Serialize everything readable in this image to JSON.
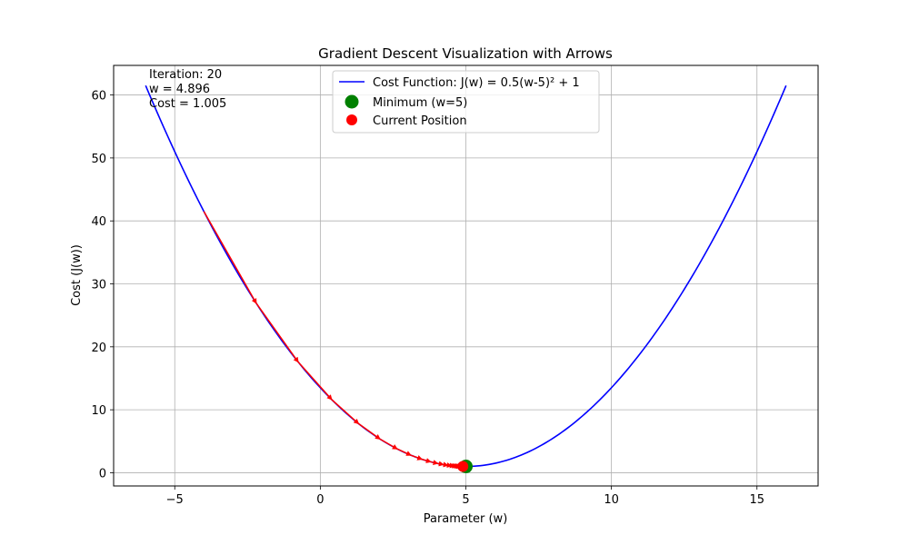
{
  "chart_data": {
    "type": "line",
    "title": "Gradient Descent Visualization with Arrows",
    "xlabel": "Parameter (w)",
    "ylabel": "Cost (J(w))",
    "xlim": [
      -7.1,
      17.1
    ],
    "ylim": [
      -2.1,
      64.7
    ],
    "xticks": [
      -5,
      0,
      5,
      10,
      15
    ],
    "yticks": [
      0,
      10,
      20,
      30,
      40,
      50,
      60
    ],
    "grid": true,
    "legend_position": "top-center",
    "curve": {
      "name": "Cost Function: J(w) = 0.5(w-5)² + 1",
      "color": "#0000ff",
      "function": "0.5*(w-5)^2 + 1",
      "x_range": [
        -6,
        16
      ]
    },
    "minimum": {
      "name": "Minimum (w=5)",
      "x": 5,
      "y": 1,
      "color": "#008000"
    },
    "current": {
      "name": "Current Position",
      "x": 4.896,
      "y": 1.005,
      "color": "#ff0000"
    },
    "path": {
      "color": "#ff0000",
      "learning_rate": 0.2,
      "start_w": -4,
      "iterations": 20
    },
    "annotation": {
      "lines": [
        "Iteration: 20",
        "w = 4.896",
        "Cost = 1.005"
      ]
    }
  }
}
